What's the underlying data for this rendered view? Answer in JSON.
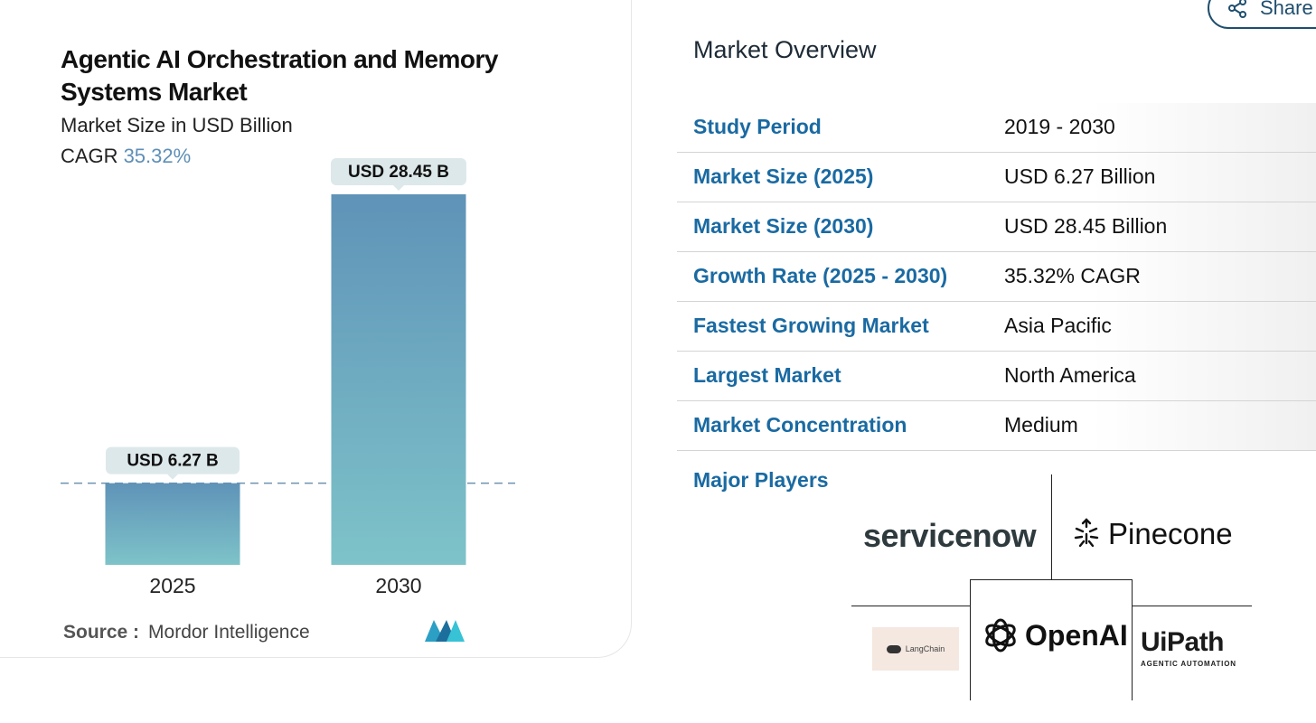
{
  "chart_panel": {
    "title": "Agentic AI Orchestration and Memory Systems Market",
    "subtitle": "Market Size in USD Billion",
    "cagr_label": "CAGR",
    "cagr_value": "35.32%",
    "source_label": "Source :",
    "source_value": "Mordor Intelligence"
  },
  "chart_data": {
    "type": "bar",
    "categories": [
      "2025",
      "2030"
    ],
    "values": [
      6.27,
      28.45
    ],
    "data_labels": [
      "USD 6.27 B",
      "USD 28.45 B"
    ],
    "title": "Agentic AI Orchestration and Memory Systems Market",
    "ylabel": "Market Size in USD Billion",
    "ylim": [
      0,
      28.45
    ],
    "grid": false,
    "reference_line": "dashed line at the 2025 value",
    "colors": {
      "bar_top": "#5f93b8",
      "bar_bottom": "#7ec3c9",
      "label_bg": "#dde8ea"
    }
  },
  "overview": {
    "title": "Market Overview",
    "rows": [
      {
        "key": "Study Period",
        "value": "2019 - 2030"
      },
      {
        "key": "Market Size (2025)",
        "value": "USD 6.27 Billion"
      },
      {
        "key": "Market Size (2030)",
        "value": "USD 28.45 Billion"
      },
      {
        "key": "Growth Rate (2025 - 2030)",
        "value": "35.32% CAGR"
      },
      {
        "key": "Fastest Growing Market",
        "value": "Asia Pacific"
      },
      {
        "key": "Largest Market",
        "value": "North America"
      },
      {
        "key": "Market Concentration",
        "value": "Medium"
      }
    ],
    "major_players_label": "Major Players"
  },
  "players": {
    "servicenow": "servicenow",
    "pinecone": "Pinecone",
    "langchain": "LangChain",
    "openai": "OpenAI",
    "uipath": "UiPath",
    "uipath_tag": "AGENTIC AUTOMATION"
  },
  "share": {
    "label": "Share"
  },
  "colors": {
    "accent_blue": "#1a6aa2",
    "cagr_blue": "#5e8fb7",
    "servicenow_green": "#62d84e",
    "uipath_orange": "#e8441b"
  }
}
